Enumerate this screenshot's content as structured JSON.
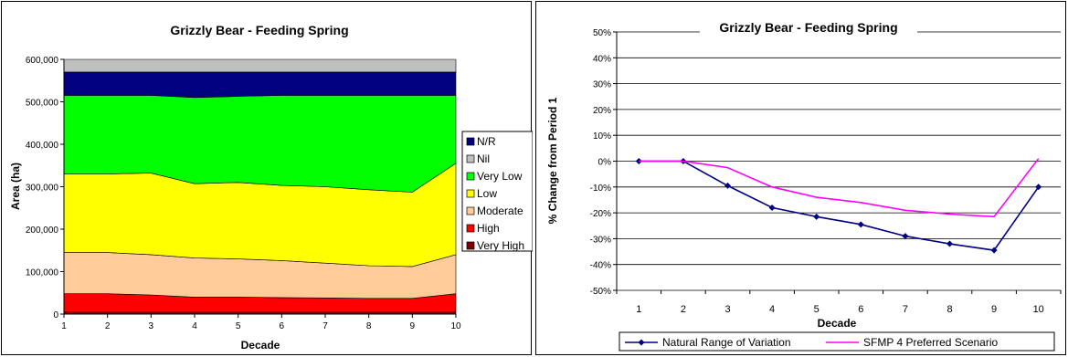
{
  "chart_data": [
    {
      "type": "area",
      "stacked": true,
      "title": "Grizzly Bear - Feeding Spring",
      "xlabel": "Decade",
      "ylabel": "Area (ha)",
      "x": [
        1,
        2,
        3,
        4,
        5,
        6,
        7,
        8,
        9,
        10
      ],
      "x_tick_labels": [
        "1",
        "2",
        "3",
        "4",
        "5",
        "6",
        "7",
        "8",
        "9",
        "10"
      ],
      "ylim": [
        0,
        600000
      ],
      "y_tick_labels": [
        "0",
        "100,000",
        "200,000",
        "300,000",
        "400,000",
        "500,000",
        "600,000"
      ],
      "grid": false,
      "legend_position": "right",
      "series": [
        {
          "name": "Very High",
          "color": "#800000",
          "values": [
            5000,
            5000,
            5000,
            5000,
            5000,
            5000,
            5000,
            5000,
            5000,
            5000
          ]
        },
        {
          "name": "High",
          "color": "#ff0000",
          "values": [
            43000,
            43000,
            40000,
            35000,
            35000,
            34000,
            33000,
            32000,
            32000,
            43000
          ]
        },
        {
          "name": "Moderate",
          "color": "#ffcc99",
          "values": [
            97000,
            97000,
            95000,
            92000,
            90000,
            87000,
            82000,
            77000,
            75000,
            92000
          ]
        },
        {
          "name": "Low",
          "color": "#ffff00",
          "values": [
            185000,
            185000,
            192000,
            175000,
            180000,
            177000,
            180000,
            179000,
            175000,
            215000
          ]
        },
        {
          "name": "Very Low",
          "color": "#00ff00",
          "values": [
            185000,
            185000,
            183000,
            203000,
            203000,
            212000,
            215000,
            222000,
            228000,
            160000
          ]
        },
        {
          "name": "N/R",
          "color": "#000080",
          "values": [
            55000,
            55000,
            55000,
            60000,
            57000,
            55000,
            55000,
            55000,
            55000,
            55000
          ]
        },
        {
          "name": "Nil",
          "color": "#c0c0c0",
          "values": [
            30000,
            30000,
            30000,
            30000,
            30000,
            30000,
            30000,
            30000,
            30000,
            30000
          ]
        }
      ],
      "legend_order": [
        "N/R",
        "Nil",
        "Very Low",
        "Low",
        "Moderate",
        "High",
        "Very High"
      ]
    },
    {
      "type": "line",
      "title": "Grizzly Bear - Feeding Spring",
      "xlabel": "Decade",
      "ylabel": "% Change from Period 1",
      "x": [
        1,
        2,
        3,
        4,
        5,
        6,
        7,
        8,
        9,
        10
      ],
      "x_tick_labels": [
        "1",
        "2",
        "3",
        "4",
        "5",
        "6",
        "7",
        "8",
        "9",
        "10"
      ],
      "ylim": [
        -50,
        50
      ],
      "y_tick_labels": [
        "-50%",
        "-40%",
        "-30%",
        "-20%",
        "-10%",
        "0%",
        "10%",
        "20%",
        "30%",
        "40%",
        "50%"
      ],
      "grid": true,
      "legend_position": "bottom",
      "series": [
        {
          "name": "Natural Range of Variation",
          "color": "#000080",
          "marker": "diamond",
          "values": [
            0,
            0,
            -9.5,
            -18,
            -21.5,
            -24.5,
            -29,
            -32,
            -34.5,
            -10
          ]
        },
        {
          "name": "SFMP 4 Preferred Scenario",
          "color": "#ff00ff",
          "marker": "none",
          "values": [
            0,
            0,
            -2.5,
            -10,
            -14,
            -16,
            -19,
            -20.5,
            -21.5,
            1
          ]
        }
      ]
    }
  ]
}
